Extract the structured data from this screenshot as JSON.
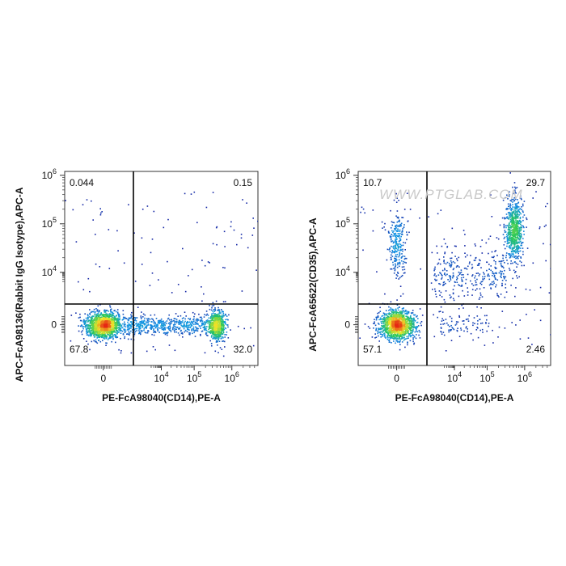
{
  "watermark": "WWW.PTGLAB.COM",
  "chart_data": [
    {
      "type": "scatter",
      "title": "",
      "xlabel": "PE-FcA98040(CD14),PE-A",
      "ylabel": "APC-FcA98136(Rabbit IgG Isotype),APC-A",
      "scale": "biexponential",
      "x_ticks": [
        "0",
        "10^4",
        "10^5",
        "10^6"
      ],
      "y_ticks": [
        "0",
        "10^4",
        "10^5",
        "10^6"
      ],
      "quadrant_percentages": {
        "upper_left": "0.044",
        "upper_right": "0.15",
        "lower_left": "67.8",
        "lower_right": "32.0"
      },
      "populations": [
        {
          "x": 0,
          "y": 0,
          "weight": 0.55
        },
        {
          "x": 400000,
          "y": 0,
          "weight": 0.22
        },
        {
          "x": 20000,
          "y": 0,
          "weight": 0.23
        }
      ]
    },
    {
      "type": "scatter",
      "title": "",
      "xlabel": "PE-FcA98040(CD14),PE-A",
      "ylabel": "APC-FcA65622(CD35),APC-A",
      "scale": "biexponential",
      "x_ticks": [
        "0",
        "10^4",
        "10^5",
        "10^6"
      ],
      "y_ticks": [
        "0",
        "10^4",
        "10^5",
        "10^6"
      ],
      "quadrant_percentages": {
        "upper_left": "10.7",
        "upper_right": "29.7",
        "lower_left": "57.1",
        "lower_right": "2.46"
      },
      "populations": [
        {
          "x": 0,
          "y": 0,
          "weight": 0.5
        },
        {
          "x": 500000,
          "y": 80000,
          "weight": 0.25
        },
        {
          "x": 0,
          "y": 40000,
          "weight": 0.1
        },
        {
          "x": 30000,
          "y": 8000,
          "weight": 0.12
        },
        {
          "x": 20000,
          "y": 0,
          "weight": 0.03
        }
      ]
    }
  ]
}
